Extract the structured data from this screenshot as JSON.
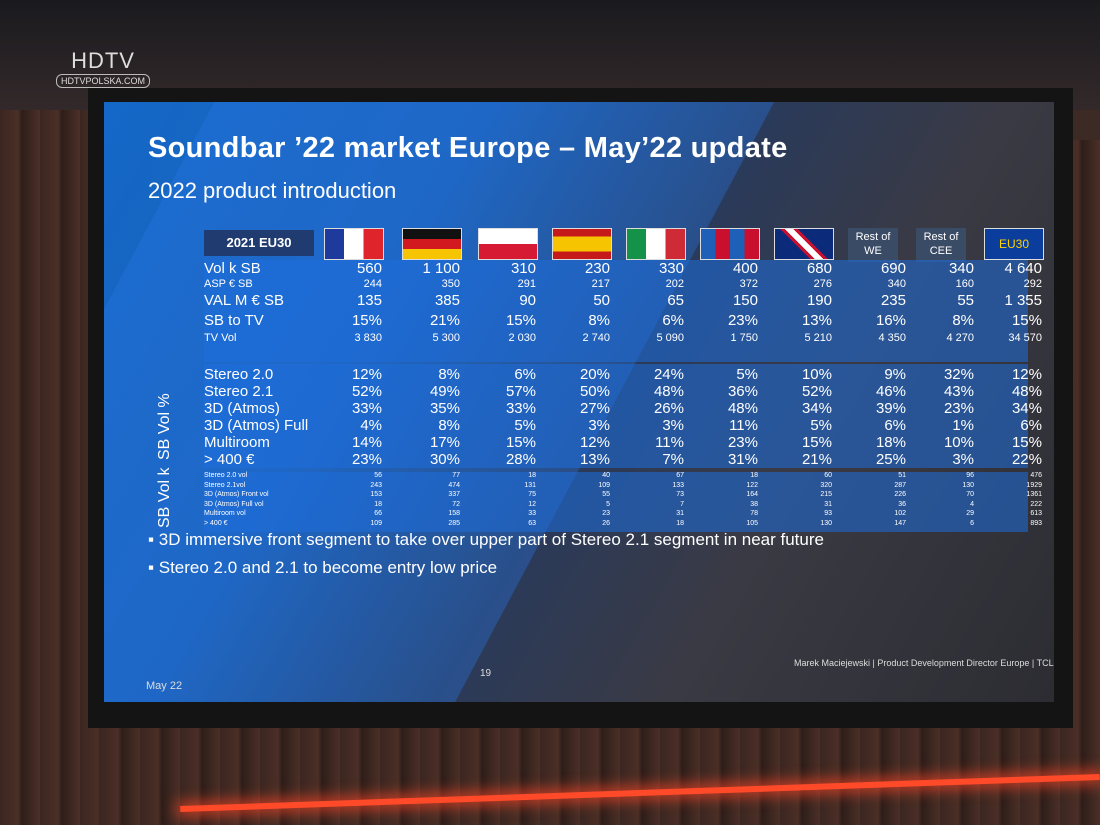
{
  "watermark": {
    "main": "HDTV",
    "sub": "HDTVPOLSKA.COM"
  },
  "slide": {
    "title": "Soundbar ’22 market Europe – May’22 update",
    "subtitle": "2022 product introduction",
    "table": {
      "corner_label": "2021 EU30",
      "columns": [
        {
          "kind": "flag",
          "name": "france-flag-icon"
        },
        {
          "kind": "flag",
          "name": "germany-flag-icon"
        },
        {
          "kind": "flag",
          "name": "poland-flag-icon"
        },
        {
          "kind": "flag",
          "name": "spain-flag-icon"
        },
        {
          "kind": "flag",
          "name": "italy-flag-icon"
        },
        {
          "kind": "flag",
          "name": "nordics-flag-icon"
        },
        {
          "kind": "flag",
          "name": "uk-flag-icon"
        },
        {
          "kind": "text",
          "label": "Rest of WE"
        },
        {
          "kind": "text",
          "label": "Rest of CEE"
        },
        {
          "kind": "eu",
          "label": "EU30"
        }
      ],
      "rows": [
        {
          "label": "Vol k SB",
          "values": [
            "560",
            "1 100",
            "310",
            "230",
            "330",
            "400",
            "680",
            "690",
            "340",
            "4 640"
          ]
        },
        {
          "label": "ASP € SB",
          "values": [
            "244",
            "350",
            "291",
            "217",
            "202",
            "372",
            "276",
            "340",
            "160",
            "292"
          ]
        },
        {
          "label": "VAL M € SB",
          "values": [
            "135",
            "385",
            "90",
            "50",
            "65",
            "150",
            "190",
            "235",
            "55",
            "1 355"
          ]
        },
        {
          "label": "SB to TV",
          "values": [
            "15%",
            "21%",
            "15%",
            "8%",
            "6%",
            "23%",
            "13%",
            "16%",
            "8%",
            "15%"
          ]
        },
        {
          "label": "TV Vol",
          "values": [
            "3 830",
            "5 300",
            "2 030",
            "2 740",
            "5 090",
            "1 750",
            "5 210",
            "4 350",
            "4 270",
            "34 570"
          ]
        }
      ],
      "vol_pct_title": "SB Vol %",
      "vol_pct_rows": [
        {
          "label": "Stereo 2.0",
          "values": [
            "12%",
            "8%",
            "6%",
            "20%",
            "24%",
            "5%",
            "10%",
            "9%",
            "32%",
            "12%"
          ]
        },
        {
          "label": "Stereo 2.1",
          "values": [
            "52%",
            "49%",
            "57%",
            "50%",
            "48%",
            "36%",
            "52%",
            "46%",
            "43%",
            "48%"
          ]
        },
        {
          "label": "3D (Atmos)",
          "values": [
            "33%",
            "35%",
            "33%",
            "27%",
            "26%",
            "48%",
            "34%",
            "39%",
            "23%",
            "34%"
          ]
        },
        {
          "label": "3D (Atmos) Full",
          "values": [
            "4%",
            "8%",
            "5%",
            "3%",
            "3%",
            "11%",
            "5%",
            "6%",
            "1%",
            "6%"
          ]
        },
        {
          "label": "Multiroom",
          "values": [
            "14%",
            "17%",
            "15%",
            "12%",
            "11%",
            "23%",
            "15%",
            "18%",
            "10%",
            "15%"
          ]
        },
        {
          "label": "> 400 €",
          "values": [
            "23%",
            "30%",
            "28%",
            "13%",
            "7%",
            "31%",
            "21%",
            "25%",
            "3%",
            "22%"
          ]
        }
      ],
      "vol_k_title": "SB Vol k",
      "vol_k_rows": [
        {
          "label": "Stereo 2.0 vol",
          "values": [
            "56",
            "77",
            "18",
            "40",
            "67",
            "18",
            "60",
            "51",
            "96",
            "476"
          ]
        },
        {
          "label": "Stereo 2.1vol",
          "values": [
            "243",
            "474",
            "131",
            "109",
            "133",
            "122",
            "320",
            "287",
            "130",
            "1929"
          ]
        },
        {
          "label": "3D (Atmos) Front vol",
          "values": [
            "153",
            "337",
            "75",
            "55",
            "73",
            "164",
            "215",
            "226",
            "70",
            "1361"
          ]
        },
        {
          "label": "3D (Atmos) Full vol",
          "values": [
            "18",
            "72",
            "12",
            "5",
            "7",
            "38",
            "31",
            "36",
            "4",
            "222"
          ]
        },
        {
          "label": "Multiroom vol",
          "values": [
            "66",
            "158",
            "33",
            "23",
            "31",
            "78",
            "93",
            "102",
            "29",
            "613"
          ]
        },
        {
          "label": "> 400 €",
          "values": [
            "109",
            "285",
            "63",
            "26",
            "18",
            "105",
            "130",
            "147",
            "6",
            "893"
          ]
        }
      ]
    },
    "bullets": [
      "3D immersive front segment to take over upper part of Stereo 2.1 segment in near future",
      "Stereo 2.0 and 2.1 to become entry low price"
    ],
    "footer": {
      "date": "May 22",
      "page": "19",
      "presenter": "Marek Maciejewski | Product Development Director Europe | TCL"
    }
  }
}
